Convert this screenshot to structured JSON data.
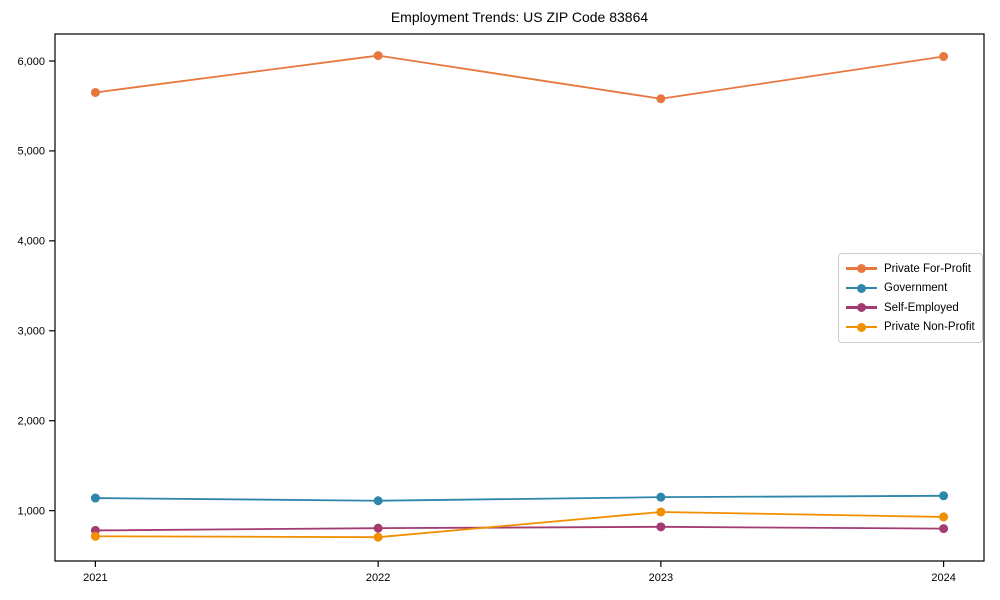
{
  "title": "Employment Trends: US ZIP Code 83864",
  "chart_data": {
    "type": "line",
    "title": "Employment Trends: US ZIP Code 83864",
    "xlabel": "",
    "ylabel": "",
    "x": [
      "2021",
      "2022",
      "2023",
      "2024"
    ],
    "yticks": [
      1000,
      2000,
      3000,
      4000,
      5000,
      6000
    ],
    "ytick_labels": [
      "1,000",
      "2,000",
      "3,000",
      "4,000",
      "5,000",
      "6,000"
    ],
    "ylim": [
      440,
      6300
    ],
    "grid": false,
    "legend_position": "center-right",
    "series": [
      {
        "name": "Private For-Profit",
        "color": "#E8773D",
        "values": [
          5650,
          6060,
          5580,
          6050
        ]
      },
      {
        "name": "Government",
        "color": "#2E86AB",
        "values": [
          1140,
          1110,
          1150,
          1165
        ]
      },
      {
        "name": "Self-Employed",
        "color": "#A23B72",
        "values": [
          780,
          805,
          820,
          800
        ]
      },
      {
        "name": "Private Non-Profit",
        "color": "#F18F01",
        "values": [
          715,
          705,
          985,
          930
        ]
      }
    ]
  }
}
